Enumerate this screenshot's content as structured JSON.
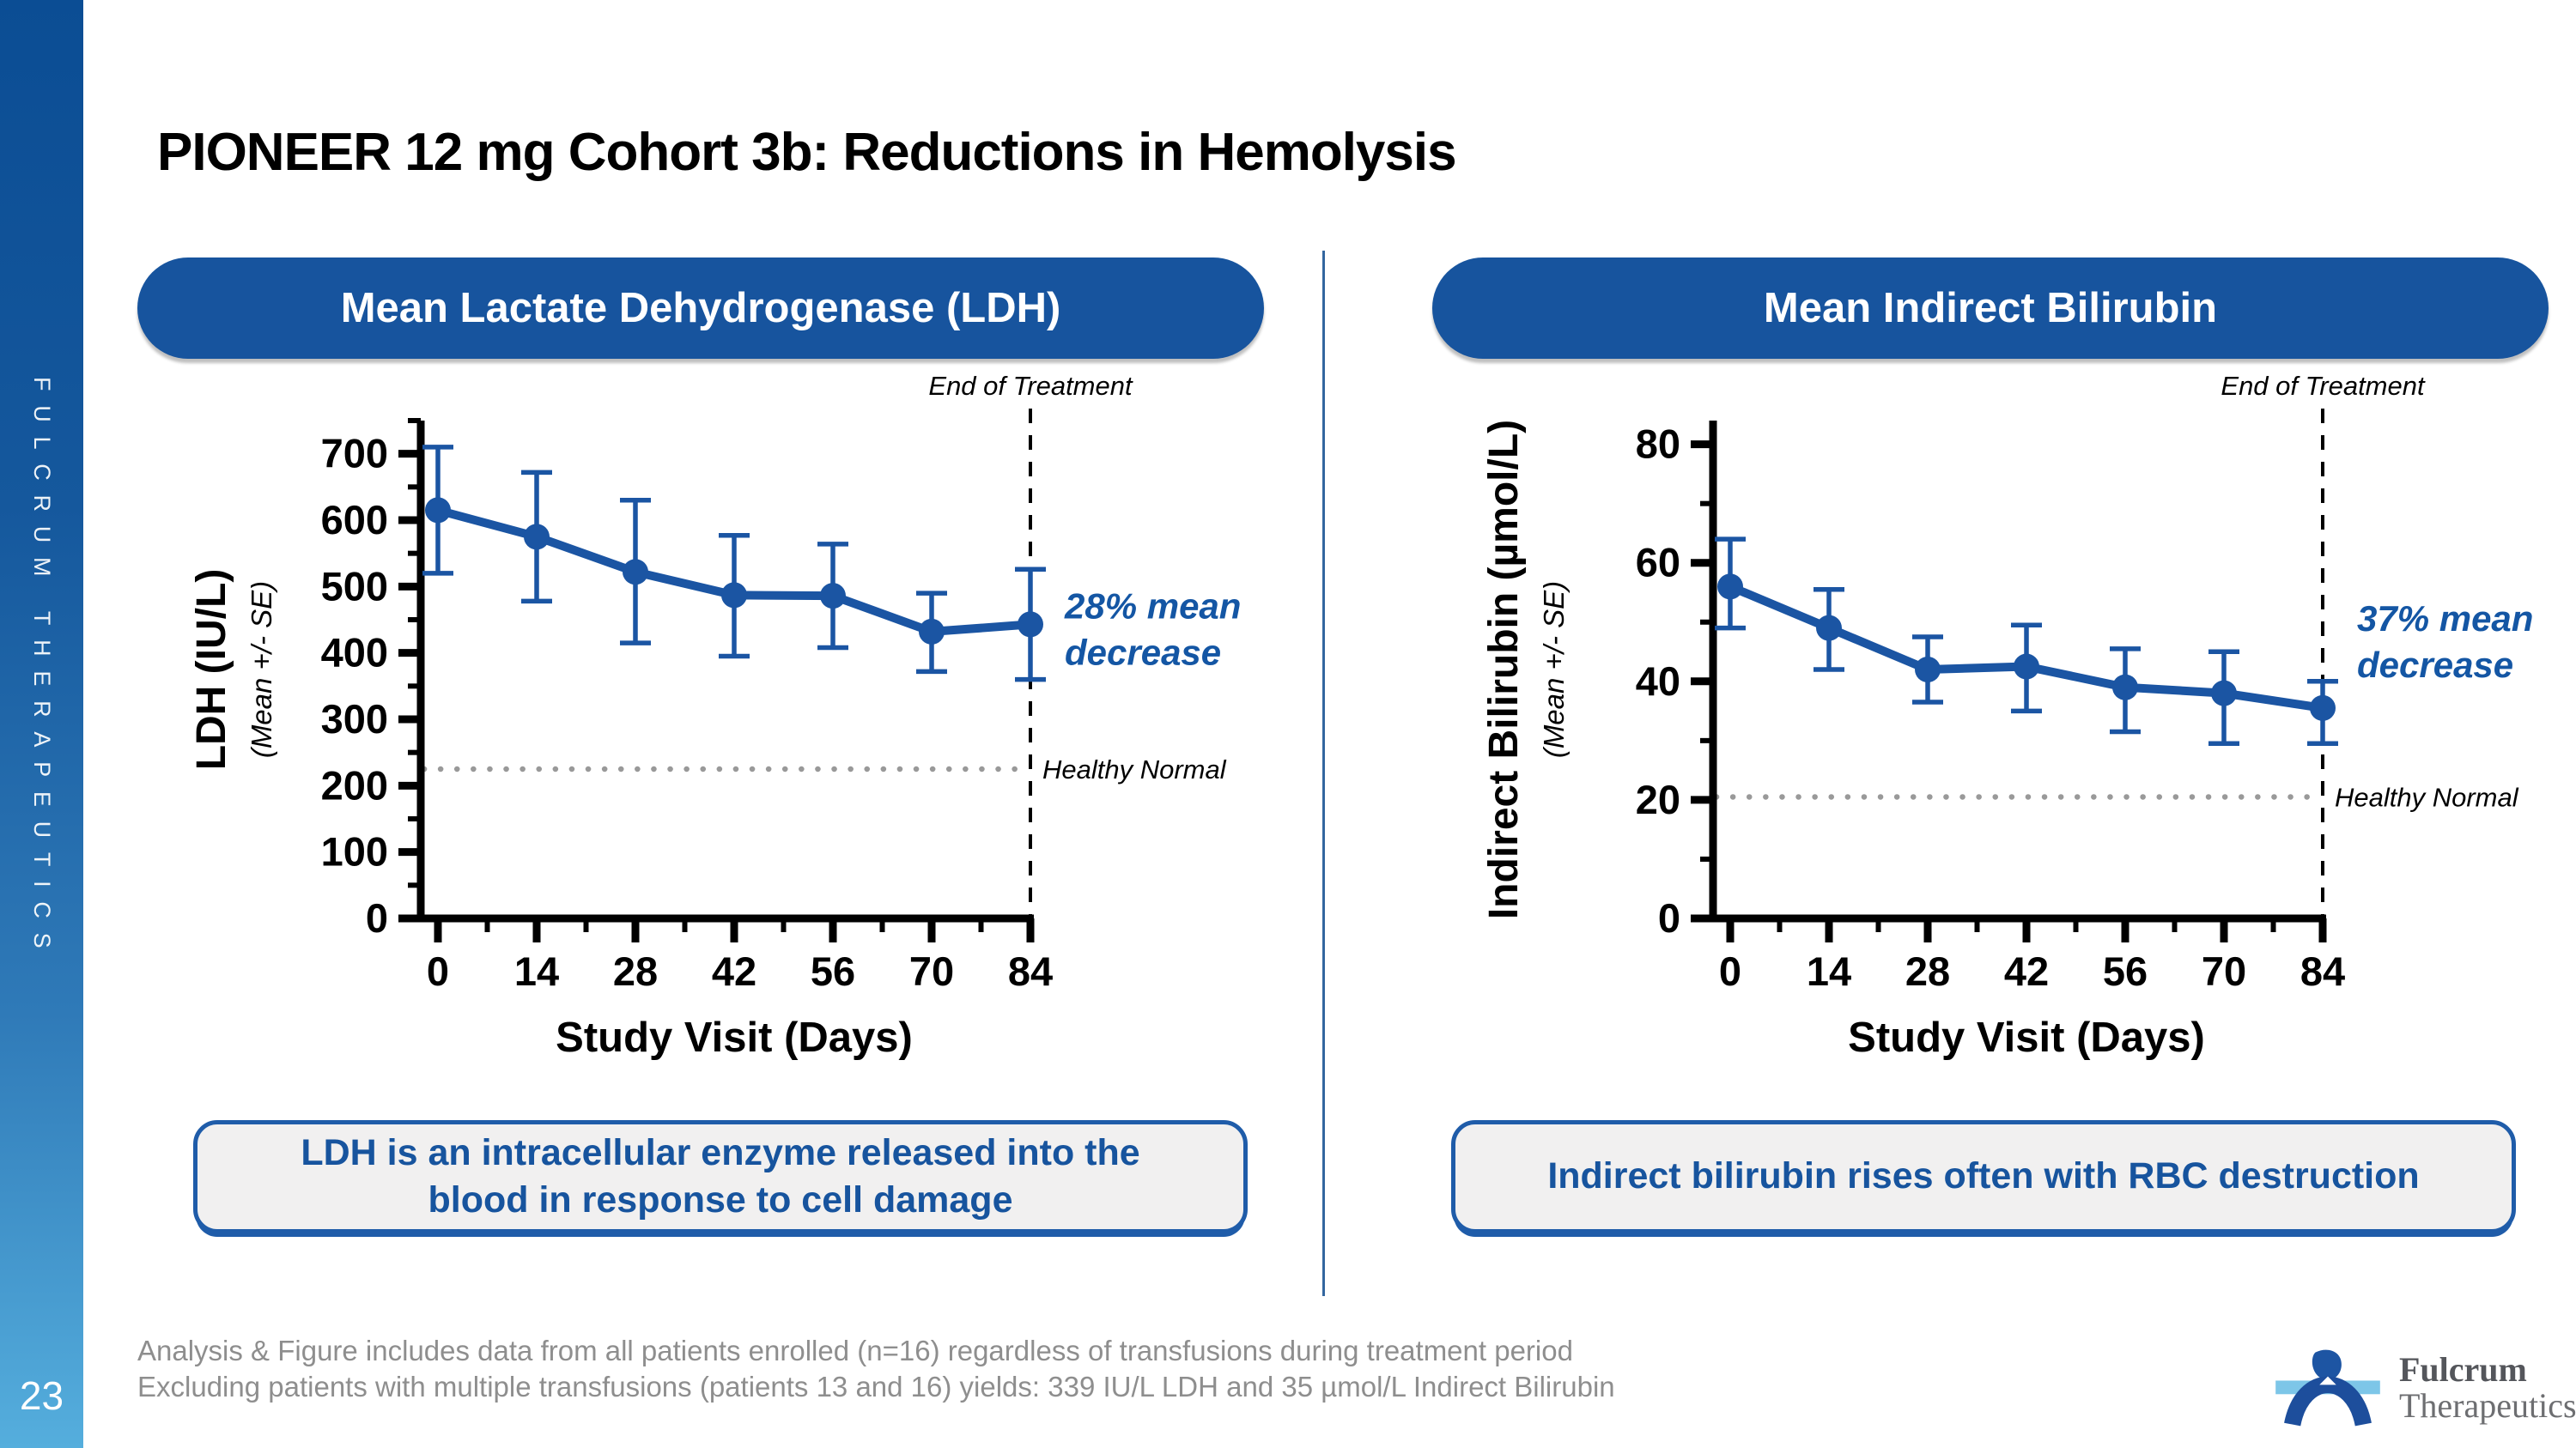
{
  "slide": {
    "title": "PIONEER 12 mg Cohort 3b: Reductions in Hemolysis",
    "sidebar_text": "FULCRUM THERAPEUTICS",
    "page_number": "23"
  },
  "footer": {
    "line1": "Analysis & Figure includes data from all patients enrolled (n=16) regardless of transfusions during treatment period",
    "line2": "Excluding patients with multiple transfusions (patients 13 and 16) yields: 339 IU/L LDH and 35 µmol/L Indirect Bilirubin"
  },
  "logo": {
    "line1": "Fulcrum",
    "line2": "Therapeutics"
  },
  "colors": {
    "accent_blue": "#17549E",
    "chart_blue": "#1B55A3",
    "annotation_blue": "#1456A4",
    "axis_black": "#000000",
    "healthy_normal_gray": "#999999",
    "divider_blue": "#33669F",
    "caption_bg": "#F1F0F0",
    "footer_gray": "#8E8E8E",
    "logo_light_blue": "#7DC6E8",
    "logo_dark_blue": "#1D4E9C"
  },
  "chart_data": [
    {
      "type": "line",
      "panel_header": "Mean Lactate Dehydrogenase (LDH)",
      "caption": "LDH is an intracellular enzyme released into the blood in response to cell damage",
      "xlabel": "Study Visit (Days)",
      "ylabel": "LDH (IU/L)",
      "ylabel_sub": "(Mean +/- SE)",
      "x": [
        0,
        14,
        28,
        42,
        56,
        70,
        84
      ],
      "x_minor_ticks": [
        7,
        21,
        35,
        49,
        63,
        77
      ],
      "xlim": [
        0,
        84
      ],
      "ylim": [
        0,
        750
      ],
      "y_major_ticks": [
        0,
        100,
        200,
        300,
        400,
        500,
        600,
        700
      ],
      "y_minor_ticks": [
        50,
        150,
        250,
        350,
        450,
        550,
        650,
        750
      ],
      "grid": false,
      "series": [
        {
          "name": "LDH mean +/- SE",
          "mean": [
            615,
            575,
            522,
            487,
            486,
            432,
            443
          ],
          "upper": [
            710,
            672,
            630,
            577,
            564,
            490,
            526
          ],
          "lower": [
            520,
            478,
            415,
            395,
            408,
            372,
            360
          ]
        }
      ],
      "healthy_normal": {
        "value": 225,
        "label": "Healthy Normal"
      },
      "end_of_treatment": {
        "x": 84,
        "label": "End of Treatment"
      },
      "annotation": {
        "line1": "28% mean",
        "line2": "decrease",
        "anchor_value": 452
      }
    },
    {
      "type": "line",
      "panel_header": "Mean Indirect Bilirubin",
      "caption": "Indirect bilirubin rises often with RBC destruction",
      "xlabel": "Study Visit (Days)",
      "ylabel": "Indirect Bilirubin (µmol/L)",
      "ylabel_sub": "(Mean +/- SE)",
      "x": [
        0,
        14,
        28,
        42,
        56,
        70,
        84
      ],
      "x_minor_ticks": [
        7,
        21,
        35,
        49,
        63,
        77
      ],
      "xlim": [
        0,
        84
      ],
      "ylim": [
        0,
        84
      ],
      "y_major_ticks": [
        0,
        20,
        40,
        60,
        80
      ],
      "y_minor_ticks": [
        10,
        30,
        50,
        70
      ],
      "grid": false,
      "series": [
        {
          "name": "Indirect bilirubin mean +/- SE",
          "mean": [
            56,
            49,
            42,
            42.5,
            39,
            38,
            35.5
          ],
          "upper": [
            64,
            55.5,
            47.5,
            49.5,
            45.5,
            45,
            40
          ],
          "lower": [
            49,
            42,
            36.5,
            35,
            31.5,
            29.5,
            29.5
          ]
        }
      ],
      "healthy_normal": {
        "value": 20.5,
        "label": "Healthy Normal"
      },
      "end_of_treatment": {
        "x": 84,
        "label": "End of Treatment"
      },
      "annotation": {
        "line1": "37% mean",
        "line2": "decrease",
        "anchor_value": 48.5
      }
    }
  ]
}
